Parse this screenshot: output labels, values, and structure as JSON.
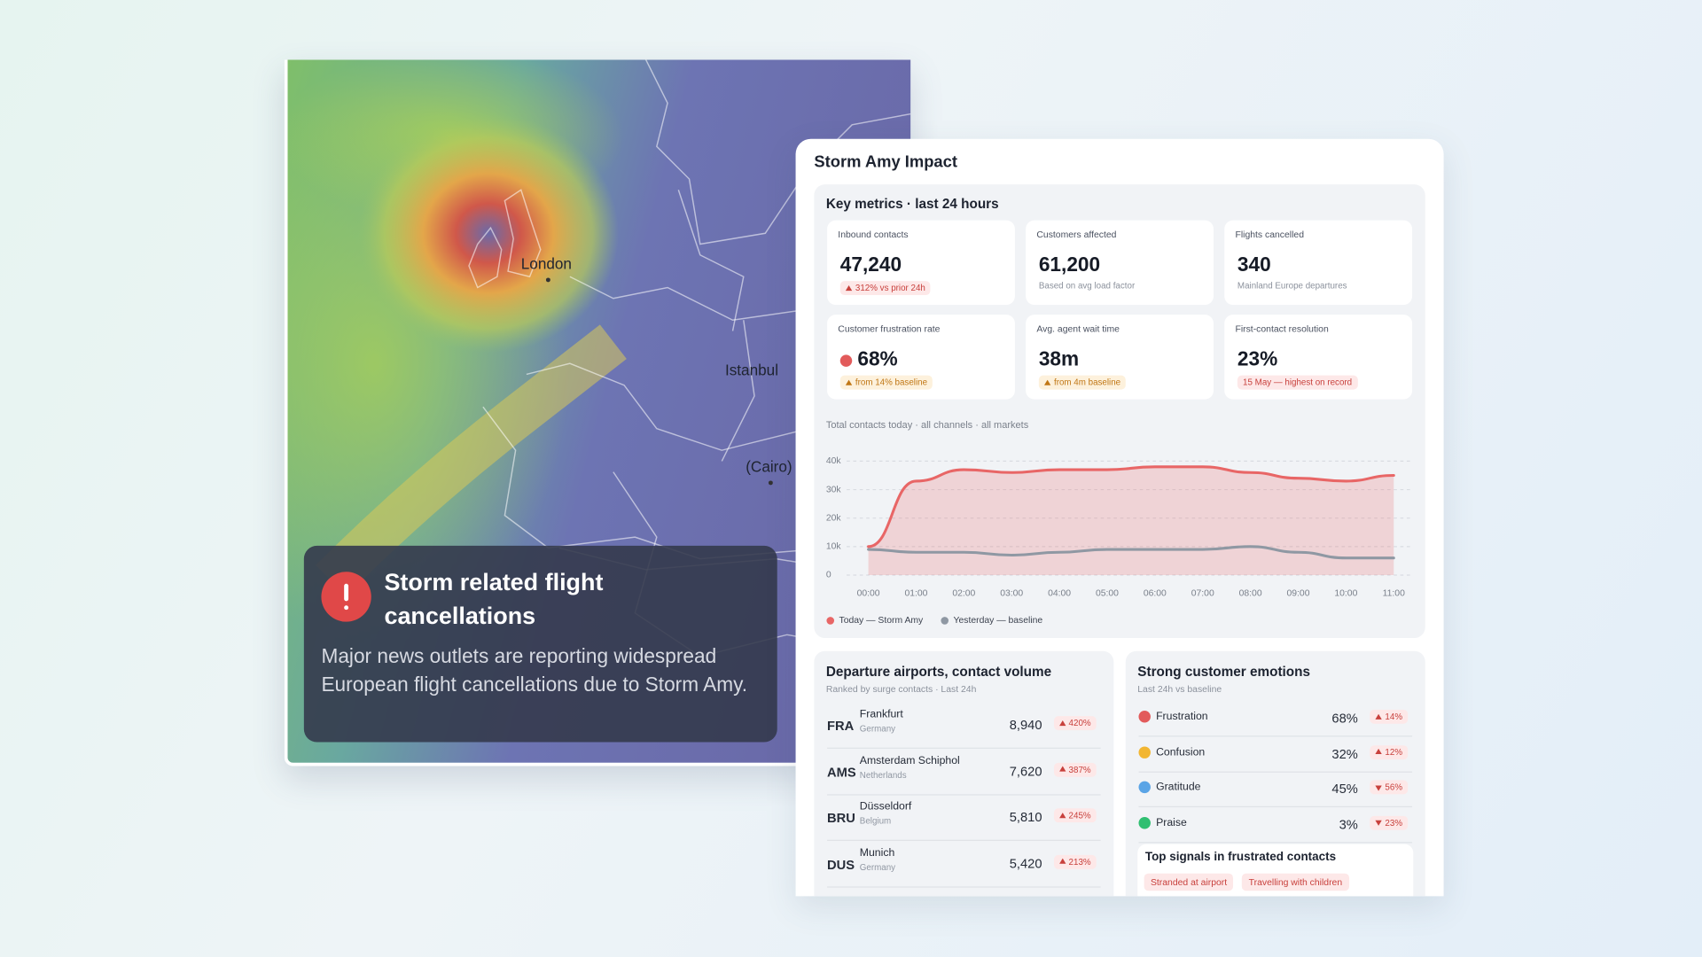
{
  "map": {
    "labels": [
      "London",
      "Istanbul",
      "(Cairo)"
    ]
  },
  "alert": {
    "title": "Storm related flight cancellations",
    "body": "Major news outlets are reporting widespread European flight cancellations due to Storm Amy."
  },
  "dashboard": {
    "title": "Storm Amy Impact",
    "key_metrics": {
      "heading": "Key metrics · last 24 hours",
      "items": [
        {
          "label": "Inbound contacts",
          "value": "47,240",
          "note": "312% vs prior 24h",
          "tone": "red",
          "trend": "up"
        },
        {
          "label": "Customers affected",
          "value": "61,200",
          "note": "Based on avg load factor"
        },
        {
          "label": "Flights cancelled",
          "value": "340",
          "note": "Mainland Europe departures"
        },
        {
          "label": "Customer frustration rate",
          "value": "68%",
          "note": "from 14% baseline",
          "tone": "orange",
          "trend": "up",
          "icon_color": "#e25b5b"
        },
        {
          "label": "Avg. agent wait time",
          "value": "38m",
          "note": "from 4m baseline",
          "tone": "orange",
          "trend": "up"
        },
        {
          "label": "First-contact resolution",
          "value": "23%",
          "note": "15 May — highest on record",
          "tone": "red"
        }
      ]
    }
  },
  "chart_data": {
    "type": "line",
    "title": "Total contacts today · all channels · all markets",
    "categories": [
      "00:00",
      "01:00",
      "02:00",
      "03:00",
      "04:00",
      "05:00",
      "06:00",
      "07:00",
      "08:00",
      "09:00",
      "10:00",
      "11:00"
    ],
    "series": [
      {
        "name": "Today — Storm Amy",
        "color": "#e86666",
        "filled": true,
        "values": [
          10000,
          33000,
          37000,
          36000,
          37000,
          37000,
          38000,
          38000,
          36000,
          34000,
          33000,
          35000
        ]
      },
      {
        "name": "Yesterday — baseline",
        "color": "#8f98a3",
        "values": [
          9000,
          8000,
          8000,
          7000,
          8000,
          9000,
          9000,
          9000,
          10000,
          8000,
          6000,
          6000
        ]
      }
    ],
    "ylim": [
      0,
      40000
    ],
    "yticks": [
      0,
      {
        "value": 10000,
        "label": "10k"
      },
      {
        "value": 20000,
        "label": "20k"
      },
      {
        "value": 30000,
        "label": "30k"
      },
      {
        "value": 40000,
        "label": "40k"
      }
    ],
    "grid": true
  },
  "airports": {
    "title": "Departure airports, contact volume",
    "subtitle": "Ranked by surge contacts · Last 24h",
    "rows": [
      {
        "code": "FRA",
        "city": "Frankfurt",
        "country": "Germany",
        "contacts": "8,940",
        "change": "420%"
      },
      {
        "code": "AMS",
        "city": "Amsterdam Schiphol",
        "country": "Netherlands",
        "contacts": "7,620",
        "change": "387%"
      },
      {
        "code": "BRU",
        "city": "Düsseldorf",
        "country": "Belgium",
        "contacts": "5,810",
        "change": "245%"
      },
      {
        "code": "DUS",
        "city": "Munich",
        "country": "Germany",
        "contacts": "5,420",
        "change": "213%"
      }
    ]
  },
  "emotions": {
    "title": "Strong customer emotions",
    "subtitle": "Last 24h vs baseline",
    "rows": [
      {
        "name": "Frustration",
        "share": "68%",
        "change": "14%",
        "trend": "up",
        "color": "#e25b5b"
      },
      {
        "name": "Confusion",
        "share": "32%",
        "change": "12%",
        "trend": "up",
        "color": "#f2b632"
      },
      {
        "name": "Gratitude",
        "share": "45%",
        "change": "56%",
        "trend": "down",
        "color": "#5aa4e6"
      },
      {
        "name": "Praise",
        "share": "3%",
        "change": "23%",
        "trend": "down",
        "color": "#2fbf71"
      }
    ],
    "signals": {
      "title": "Top signals in frustrated contacts",
      "tags": [
        "Stranded at airport",
        "Travelling with children"
      ]
    }
  }
}
